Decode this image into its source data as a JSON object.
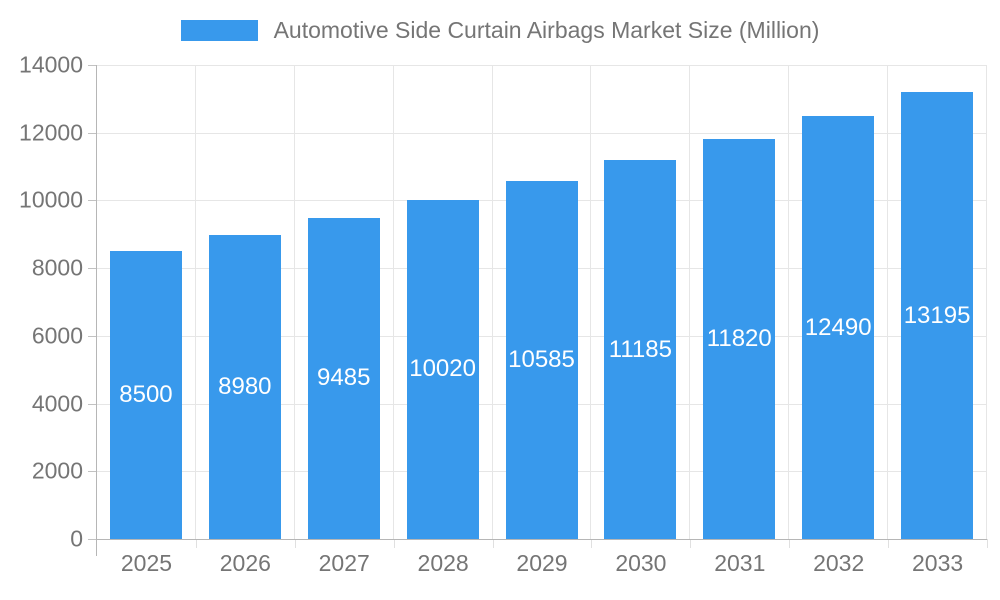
{
  "chart_data": {
    "type": "bar",
    "title": "Automotive Side Curtain Airbags Market Size (Million)",
    "categories": [
      "2025",
      "2026",
      "2027",
      "2028",
      "2029",
      "2030",
      "2031",
      "2032",
      "2033"
    ],
    "values": [
      8500,
      8980,
      9485,
      10020,
      10585,
      11185,
      11820,
      12490,
      13195
    ],
    "xlabel": "",
    "ylabel": "",
    "ylim": [
      0,
      14000
    ],
    "yticks": [
      0,
      2000,
      4000,
      6000,
      8000,
      10000,
      12000,
      14000
    ],
    "grid": true,
    "legend_position": "top",
    "legend_entries": [
      "Automotive Side Curtain Airbags Market Size (Million)"
    ],
    "colors": {
      "bar": "#3899ec",
      "bar_value_text": "#ffffff",
      "axis_text": "#757575",
      "gridline": "#e6e6e6",
      "axis_line": "#b6b6b6",
      "background": "#ffffff"
    }
  }
}
